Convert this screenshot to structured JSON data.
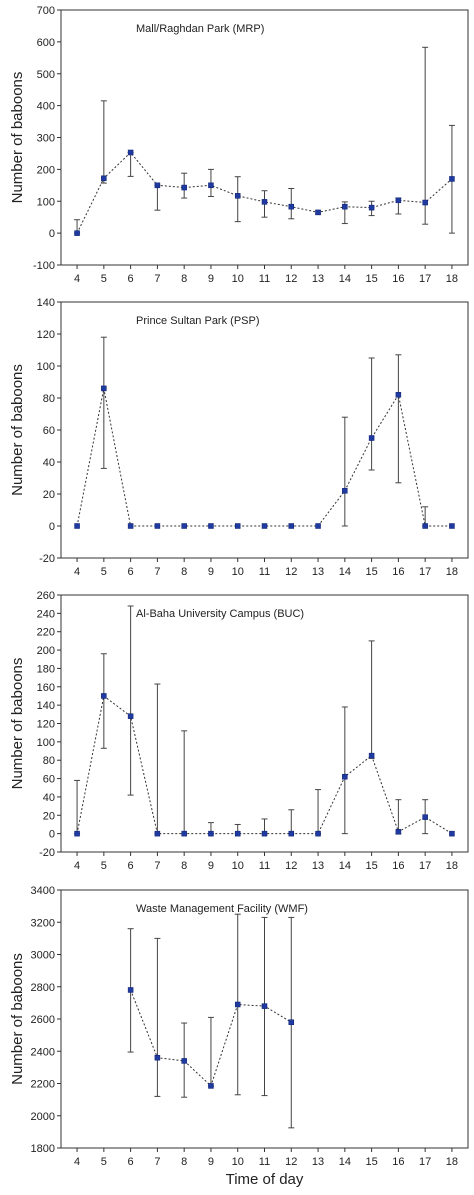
{
  "chart_data": [
    {
      "type": "line",
      "title": "Mall/Raghdan Park (MRP)",
      "xlabel": "",
      "ylabel": "Number of baboons",
      "x": [
        4,
        5,
        6,
        7,
        8,
        9,
        10,
        11,
        12,
        13,
        14,
        15,
        16,
        17,
        18
      ],
      "y": [
        0,
        172,
        253,
        150,
        143,
        150,
        117,
        98,
        83,
        65,
        83,
        80,
        103,
        96,
        170
      ],
      "err_low": [
        0,
        157,
        178,
        72,
        110,
        115,
        36,
        50,
        45,
        60,
        30,
        55,
        60,
        28,
        0
      ],
      "err_high": [
        42,
        415,
        253,
        150,
        188,
        200,
        177,
        133,
        140,
        70,
        98,
        100,
        110,
        583,
        338
      ],
      "xticks": [
        4,
        5,
        6,
        7,
        8,
        9,
        10,
        11,
        12,
        13,
        14,
        15,
        16,
        17,
        18
      ],
      "yticks": [
        -100,
        0,
        100,
        200,
        300,
        400,
        500,
        600,
        700
      ],
      "xlim": [
        3.4,
        18.6
      ],
      "ylim": [
        -100,
        700
      ],
      "grid": false,
      "color": "#1f3aa0"
    },
    {
      "type": "line",
      "title": "Prince Sultan Park (PSP)",
      "xlabel": "",
      "ylabel": "Number of baboons",
      "x": [
        4,
        5,
        6,
        7,
        8,
        9,
        10,
        11,
        12,
        13,
        14,
        15,
        16,
        17,
        18
      ],
      "y": [
        0,
        86,
        0,
        0,
        0,
        0,
        0,
        0,
        0,
        0,
        22,
        55,
        82,
        0,
        0
      ],
      "err_low": [
        0,
        36,
        0,
        0,
        0,
        0,
        0,
        0,
        0,
        0,
        0,
        35,
        27,
        0,
        0
      ],
      "err_high": [
        0,
        118,
        0,
        0,
        0,
        0,
        0,
        0,
        0,
        0,
        68,
        105,
        107,
        12,
        0
      ],
      "xticks": [
        4,
        5,
        6,
        7,
        8,
        9,
        10,
        11,
        12,
        13,
        14,
        15,
        16,
        17,
        18
      ],
      "yticks": [
        -20,
        0,
        20,
        40,
        60,
        80,
        100,
        120,
        140
      ],
      "xlim": [
        3.4,
        18.6
      ],
      "ylim": [
        -20,
        140
      ],
      "grid": false,
      "color": "#1f3aa0"
    },
    {
      "type": "line",
      "title": "Al-Baha University Campus (BUC)",
      "xlabel": "",
      "ylabel": "Number of baboons",
      "x": [
        4,
        5,
        6,
        7,
        8,
        9,
        10,
        11,
        12,
        13,
        14,
        15,
        16,
        17,
        18
      ],
      "y": [
        0,
        150,
        128,
        0,
        0,
        0,
        0,
        0,
        0,
        0,
        62,
        85,
        2,
        18,
        0
      ],
      "err_low": [
        0,
        93,
        42,
        0,
        0,
        0,
        0,
        0,
        0,
        0,
        0,
        82,
        0,
        0,
        0
      ],
      "err_high": [
        58,
        196,
        248,
        163,
        112,
        12,
        10,
        16,
        26,
        48,
        138,
        210,
        37,
        37,
        0
      ],
      "xticks": [
        4,
        5,
        6,
        7,
        8,
        9,
        10,
        11,
        12,
        13,
        14,
        15,
        16,
        17,
        18
      ],
      "yticks": [
        -20,
        0,
        20,
        40,
        60,
        80,
        100,
        120,
        140,
        160,
        180,
        200,
        220,
        240,
        260
      ],
      "xlim": [
        3.4,
        18.6
      ],
      "ylim": [
        -20,
        260
      ],
      "grid": false,
      "color": "#1f3aa0"
    },
    {
      "type": "line",
      "title": "Waste Management Facility (WMF)",
      "xlabel": "Time of day",
      "ylabel": "Number of baboons",
      "x": [
        6,
        7,
        8,
        9,
        10,
        11,
        12
      ],
      "y": [
        2780,
        2360,
        2340,
        2185,
        2690,
        2680,
        2580
      ],
      "err_low": [
        2395,
        2120,
        2115,
        2185,
        2130,
        2125,
        1925
      ],
      "err_high": [
        3160,
        3100,
        2575,
        2610,
        3250,
        3230,
        3230
      ],
      "xticks": [
        4,
        5,
        6,
        7,
        8,
        9,
        10,
        11,
        12,
        13,
        14,
        15,
        16,
        17,
        18
      ],
      "yticks": [
        1800,
        2000,
        2200,
        2400,
        2600,
        2800,
        3000,
        3200,
        3400
      ],
      "xlim": [
        3.4,
        18.6
      ],
      "ylim": [
        1800,
        3400
      ],
      "grid": false,
      "color": "#1f3aa0"
    }
  ]
}
